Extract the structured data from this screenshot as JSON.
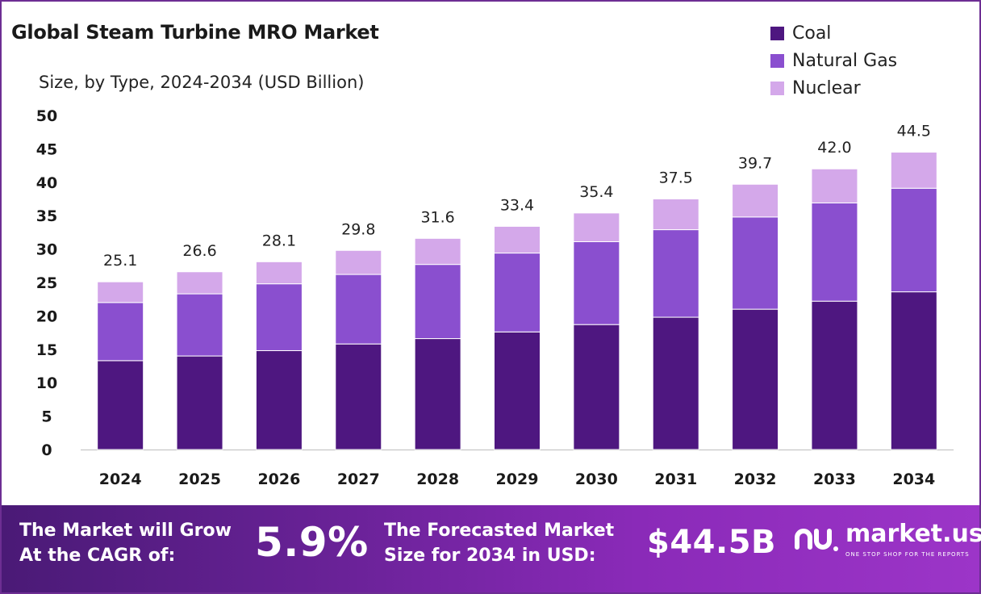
{
  "header": {
    "title": "Global Steam Turbine MRO Market",
    "subtitle": "Size, by Type, 2024-2034 (USD Billion)"
  },
  "colors": {
    "coal": "#4e1780",
    "natural_gas": "#8a4fcf",
    "nuclear": "#d4a8ea",
    "frame": "#6d2e93"
  },
  "chart_data": {
    "type": "bar",
    "stacked": true,
    "categories": [
      "2024",
      "2025",
      "2026",
      "2027",
      "2028",
      "2029",
      "2030",
      "2031",
      "2032",
      "2033",
      "2034"
    ],
    "series": [
      {
        "name": "Coal",
        "values": [
          13.3,
          14.0,
          14.8,
          15.8,
          16.6,
          17.6,
          18.7,
          19.8,
          21.0,
          22.2,
          23.6
        ]
      },
      {
        "name": "Natural Gas",
        "values": [
          8.7,
          9.3,
          10.0,
          10.4,
          11.1,
          11.8,
          12.4,
          13.1,
          13.8,
          14.7,
          15.5
        ]
      },
      {
        "name": "Nuclear",
        "values": [
          3.1,
          3.3,
          3.3,
          3.6,
          3.9,
          4.0,
          4.3,
          4.6,
          4.9,
          5.1,
          5.4
        ]
      }
    ],
    "totals": [
      "25.1",
      "26.6",
      "28.1",
      "29.8",
      "31.6",
      "33.4",
      "35.4",
      "37.5",
      "39.7",
      "42.0",
      "44.5"
    ],
    "yticks": [
      "0",
      "5",
      "10",
      "15",
      "20",
      "25",
      "30",
      "35",
      "40",
      "45",
      "50"
    ],
    "ylim": [
      0,
      50
    ],
    "legend_position": "top-right",
    "grid": false
  },
  "footer": {
    "cagr_label_line1": "The Market will Grow",
    "cagr_label_line2": "At the CAGR of:",
    "cagr_value": "5.9%",
    "forecast_label_line1": "The Forecasted Market",
    "forecast_label_line2": "Size for 2034 in USD:",
    "forecast_value": "$44.5B",
    "brand_name": "market.us",
    "brand_tagline": "ONE STOP SHOP FOR THE REPORTS"
  }
}
